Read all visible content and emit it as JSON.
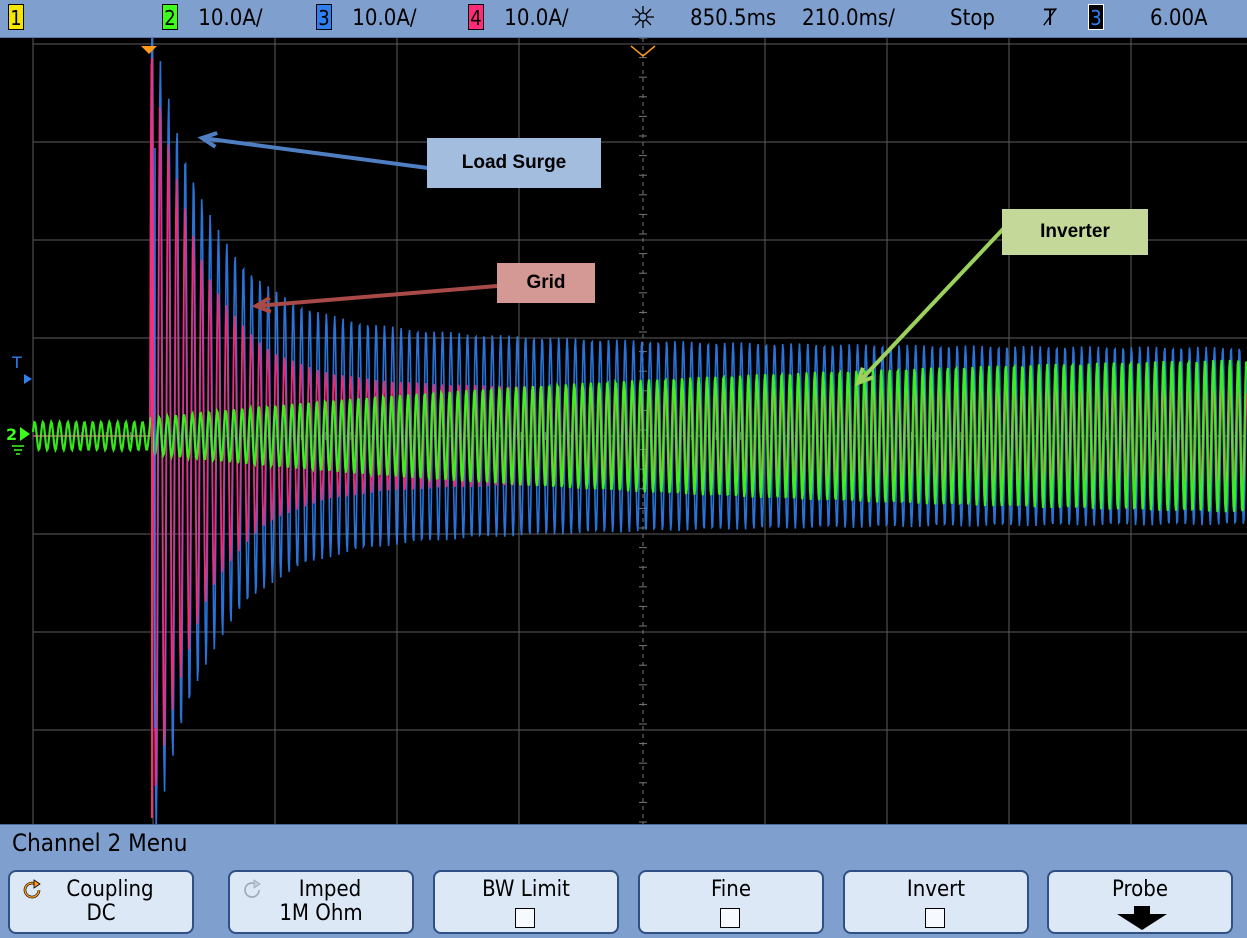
{
  "statusbar": {
    "ch1": "1",
    "ch2": "2",
    "ch2_scale": "10.0A/",
    "ch3": "3",
    "ch3_scale": "10.0A/",
    "ch4": "4",
    "ch4_scale": "10.0A/",
    "time_delay": "850.5ms",
    "time_scale": "210.0ms/",
    "run_state": "Stop",
    "trigger_slope": "Ⱦ",
    "trigger_source": "3",
    "trigger_level": "6.00A"
  },
  "colors": {
    "ch1": "#f5e600",
    "ch2": "#3cff1e",
    "ch3": "#2e7ff0",
    "ch4": "#ff2a78",
    "bar": "#7f9fcf",
    "softkey": "#dce8f6"
  },
  "markers": {
    "trigger_ref": "T",
    "ch2_ground": "2"
  },
  "annotations": {
    "load_surge": "Load Surge",
    "grid": "Grid",
    "inverter": "Inverter"
  },
  "menu": {
    "title": "Channel 2  Menu",
    "softkeys": [
      {
        "line1": "Coupling",
        "line2": "DC",
        "icon": "cycle-icon"
      },
      {
        "line1": "Imped",
        "line2": "1M Ohm",
        "icon": "cycle-icon"
      },
      {
        "line1": "BW Limit",
        "line2": "",
        "icon": "checkbox"
      },
      {
        "line1": "Fine",
        "line2": "",
        "icon": "checkbox"
      },
      {
        "line1": "Invert",
        "line2": "",
        "icon": "checkbox"
      },
      {
        "line1": "Probe",
        "line2": "",
        "icon": "down-arrow-icon"
      }
    ]
  }
}
